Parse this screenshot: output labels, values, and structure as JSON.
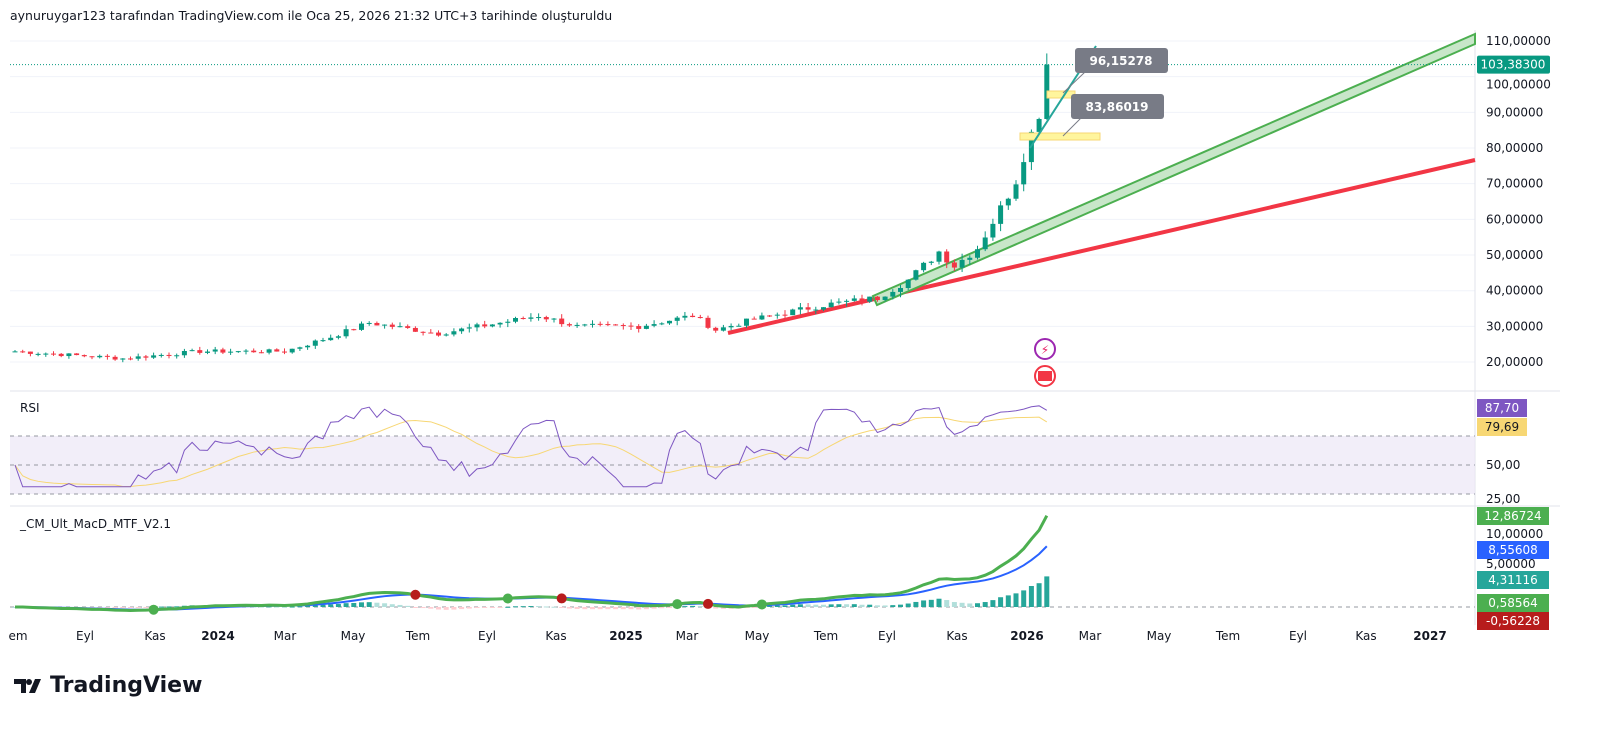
{
  "header": {
    "caption": "aynuruygar123 tarafından TradingView.com ile Oca 25, 2026 21:32 UTC+3 tarihinde oluşturuldu"
  },
  "logo": {
    "text": "TradingView"
  },
  "colors": {
    "up": "#089981",
    "down": "#f23645",
    "grid": "#f0f3fa",
    "rsi": "#7e57c2",
    "rsi_ma": "#f7d774",
    "macd": "#4caf50",
    "signal": "#2962ff",
    "support": "#f23645",
    "channel": "#4caf50"
  },
  "chart_data": {
    "type": "candlestick",
    "price_axis": {
      "ticks": [
        "110,00000",
        "100,00000",
        "90,00000",
        "80,00000",
        "70,00000",
        "60,00000",
        "50,00000",
        "40,00000",
        "30,00000",
        "20,00000"
      ],
      "values": [
        110,
        100,
        90,
        80,
        70,
        60,
        50,
        40,
        30,
        20
      ]
    },
    "last_price": {
      "label": "103,38300",
      "value": 103.383
    },
    "time_axis": [
      "em",
      "Eyl",
      "Kas",
      "2024",
      "Mar",
      "May",
      "Tem",
      "Eyl",
      "Kas",
      "2025",
      "Mar",
      "May",
      "Tem",
      "Eyl",
      "Kas",
      "2026",
      "Mar",
      "May",
      "Tem",
      "Eyl",
      "Kas",
      "2027"
    ],
    "close_anchors": [
      [
        0,
        23
      ],
      [
        14,
        21
      ],
      [
        24,
        23
      ],
      [
        35,
        23
      ],
      [
        41,
        27
      ],
      [
        46,
        31
      ],
      [
        55,
        28
      ],
      [
        63,
        31
      ],
      [
        68,
        33
      ],
      [
        73,
        30
      ],
      [
        81,
        30
      ],
      [
        88,
        33
      ],
      [
        91,
        29
      ],
      [
        96,
        32
      ],
      [
        105,
        36
      ],
      [
        112,
        38
      ],
      [
        116,
        43
      ],
      [
        120,
        51
      ],
      [
        122,
        47
      ],
      [
        125,
        52
      ],
      [
        128,
        63
      ],
      [
        130,
        71
      ],
      [
        131,
        78
      ],
      [
        133,
        90
      ],
      [
        134,
        103.38
      ]
    ],
    "annotations": [
      {
        "label": "96,15278",
        "value": 96.15278
      },
      {
        "label": "83,86019",
        "value": 83.86019
      }
    ],
    "rsi": {
      "title": "RSI",
      "value": "87,70",
      "ma": "79,69",
      "ticks": [
        "50,00",
        "25,00"
      ],
      "bands": [
        70,
        50,
        30
      ]
    },
    "macd": {
      "title": "_CM_Ult_MacD_MTF_V2.1",
      "macd": "12,86724",
      "signal": "8,55608",
      "hist": "4,31116",
      "tag4": "0,58564",
      "tag5": "-0,56228",
      "ticks": [
        "10,00000",
        "5,00000"
      ]
    }
  }
}
